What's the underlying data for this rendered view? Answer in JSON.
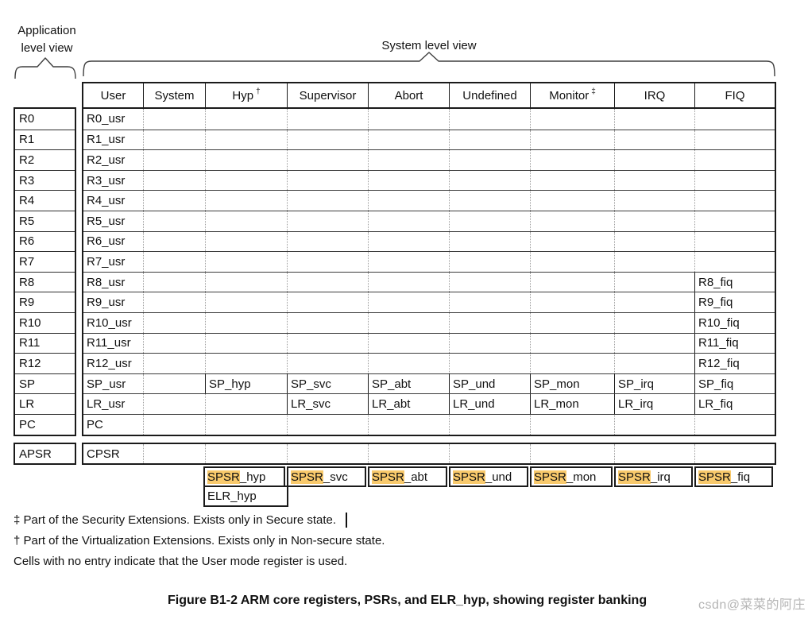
{
  "app_view_label": {
    "line1": "Application",
    "line2": "level view"
  },
  "system_view_label": "System level view",
  "register_column": [
    "R0",
    "R1",
    "R2",
    "R3",
    "R4",
    "R5",
    "R6",
    "R7",
    "R8",
    "R9",
    "R10",
    "R11",
    "R12",
    "SP",
    "LR",
    "PC"
  ],
  "apsr_label": "APSR",
  "table": {
    "columns": [
      {
        "label": "User",
        "sup": ""
      },
      {
        "label": "System",
        "sup": ""
      },
      {
        "label": "Hyp",
        "sup": "†"
      },
      {
        "label": "Supervisor",
        "sup": ""
      },
      {
        "label": "Abort",
        "sup": ""
      },
      {
        "label": "Undefined",
        "sup": ""
      },
      {
        "label": "Monitor",
        "sup": "‡"
      },
      {
        "label": "IRQ",
        "sup": ""
      },
      {
        "label": "FIQ",
        "sup": ""
      }
    ],
    "rows": [
      [
        "R0_usr",
        "",
        "",
        "",
        "",
        "",
        "",
        "",
        ""
      ],
      [
        "R1_usr",
        "",
        "",
        "",
        "",
        "",
        "",
        "",
        ""
      ],
      [
        "R2_usr",
        "",
        "",
        "",
        "",
        "",
        "",
        "",
        ""
      ],
      [
        "R3_usr",
        "",
        "",
        "",
        "",
        "",
        "",
        "",
        ""
      ],
      [
        "R4_usr",
        "",
        "",
        "",
        "",
        "",
        "",
        "",
        ""
      ],
      [
        "R5_usr",
        "",
        "",
        "",
        "",
        "",
        "",
        "",
        ""
      ],
      [
        "R6_usr",
        "",
        "",
        "",
        "",
        "",
        "",
        "",
        ""
      ],
      [
        "R7_usr",
        "",
        "",
        "",
        "",
        "",
        "",
        "",
        ""
      ],
      [
        "R8_usr",
        "",
        "",
        "",
        "",
        "",
        "",
        "",
        "R8_fiq"
      ],
      [
        "R9_usr",
        "",
        "",
        "",
        "",
        "",
        "",
        "",
        "R9_fiq"
      ],
      [
        "R10_usr",
        "",
        "",
        "",
        "",
        "",
        "",
        "",
        "R10_fiq"
      ],
      [
        "R11_usr",
        "",
        "",
        "",
        "",
        "",
        "",
        "",
        "R11_fiq"
      ],
      [
        "R12_usr",
        "",
        "",
        "",
        "",
        "",
        "",
        "",
        "R12_fiq"
      ],
      [
        "SP_usr",
        "",
        "SP_hyp",
        "SP_svc",
        "SP_abt",
        "SP_und",
        "SP_mon",
        "SP_irq",
        "SP_fiq"
      ],
      [
        "LR_usr",
        "",
        "",
        "LR_svc",
        "LR_abt",
        "LR_und",
        "LR_mon",
        "LR_irq",
        "LR_fiq"
      ],
      [
        "PC",
        "",
        "",
        "",
        "",
        "",
        "",
        "",
        ""
      ]
    ],
    "cpsr_row": [
      "CPSR",
      "",
      "",
      "",
      "",
      "",
      "",
      "",
      ""
    ],
    "spsr": {
      "highlight": "SPSR",
      "suffixes": [
        "_hyp",
        "_svc",
        "_abt",
        "_und",
        "_mon",
        "_irq",
        "_fiq"
      ]
    },
    "elr_label": "ELR_hyp"
  },
  "footnotes": [
    "‡ Part of the Security Extensions. Exists only in Secure state.",
    "† Part of the Virtualization Extensions. Exists only in Non-secure state.",
    "Cells with no entry indicate that the User mode register is used."
  ],
  "caption": "Figure B1-2 ARM core registers, PSRs, and ELR_hyp, showing register banking",
  "watermark": "csdn@菜菜的阿庄",
  "colors": {
    "highlight": "#f9ca6c",
    "border": "#1a1a1a",
    "dotted_line": "#9c9c9c",
    "watermark": "#b5b5b5"
  }
}
